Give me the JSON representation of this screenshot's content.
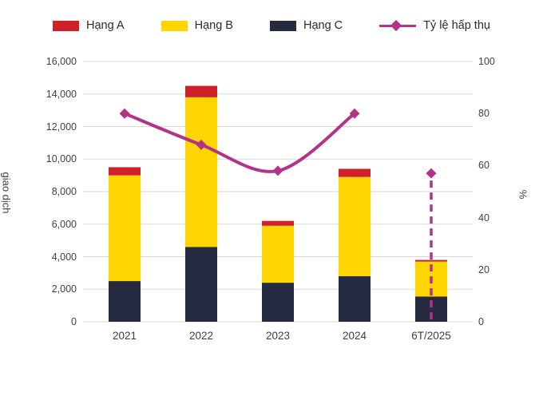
{
  "legend": {
    "items": [
      {
        "label": "Hạng A",
        "color": "#D0212A",
        "type": "swatch"
      },
      {
        "label": "Hạng B",
        "color": "#FFD500",
        "type": "swatch"
      },
      {
        "label": "Hạng C",
        "color": "#262A40",
        "type": "swatch"
      },
      {
        "label": "Tỷ lệ hấp thụ",
        "color": "#B23387",
        "type": "line"
      }
    ]
  },
  "chart_data": {
    "type": "combo-bar-line",
    "title": "",
    "categories": [
      "2021",
      "2022",
      "2023",
      "2024",
      "6T/2025"
    ],
    "bar_series": [
      {
        "name": "Hạng C",
        "color": "#262A40",
        "values": [
          2500,
          4600,
          2400,
          2800,
          1550
        ]
      },
      {
        "name": "Hạng B",
        "color": "#FFD500",
        "values": [
          6500,
          9200,
          3500,
          6100,
          2150
        ]
      },
      {
        "name": "Hạng A",
        "color": "#D0212A",
        "values": [
          500,
          700,
          300,
          500,
          100
        ]
      }
    ],
    "bar_totals": [
      9500,
      14500,
      6200,
      9400,
      3800
    ],
    "line_series": {
      "name": "Tỷ lệ hấp thụ",
      "color": "#B23387",
      "axis": "right",
      "values": [
        80,
        68,
        58,
        80,
        57
      ],
      "smooth": true,
      "solid_through_index": 3,
      "last_point_dashed_drop": true
    },
    "left_axis": {
      "label": "giao dịch",
      "min": 0,
      "max": 16000,
      "step": 2000,
      "tick_labels": [
        "0",
        "2,000",
        "4,000",
        "6,000",
        "8,000",
        "10,000",
        "12,000",
        "14,000",
        "16,000"
      ]
    },
    "right_axis": {
      "label": "%",
      "min": 0,
      "max": 100,
      "step": 20,
      "tick_labels": [
        "0",
        "20",
        "40",
        "60",
        "80",
        "100"
      ]
    },
    "grid": "horizontal",
    "legend_position": "top"
  },
  "colors": {
    "grid": "#D9D9D9",
    "text": "#3F3F3F",
    "background": "#FFFFFF"
  }
}
